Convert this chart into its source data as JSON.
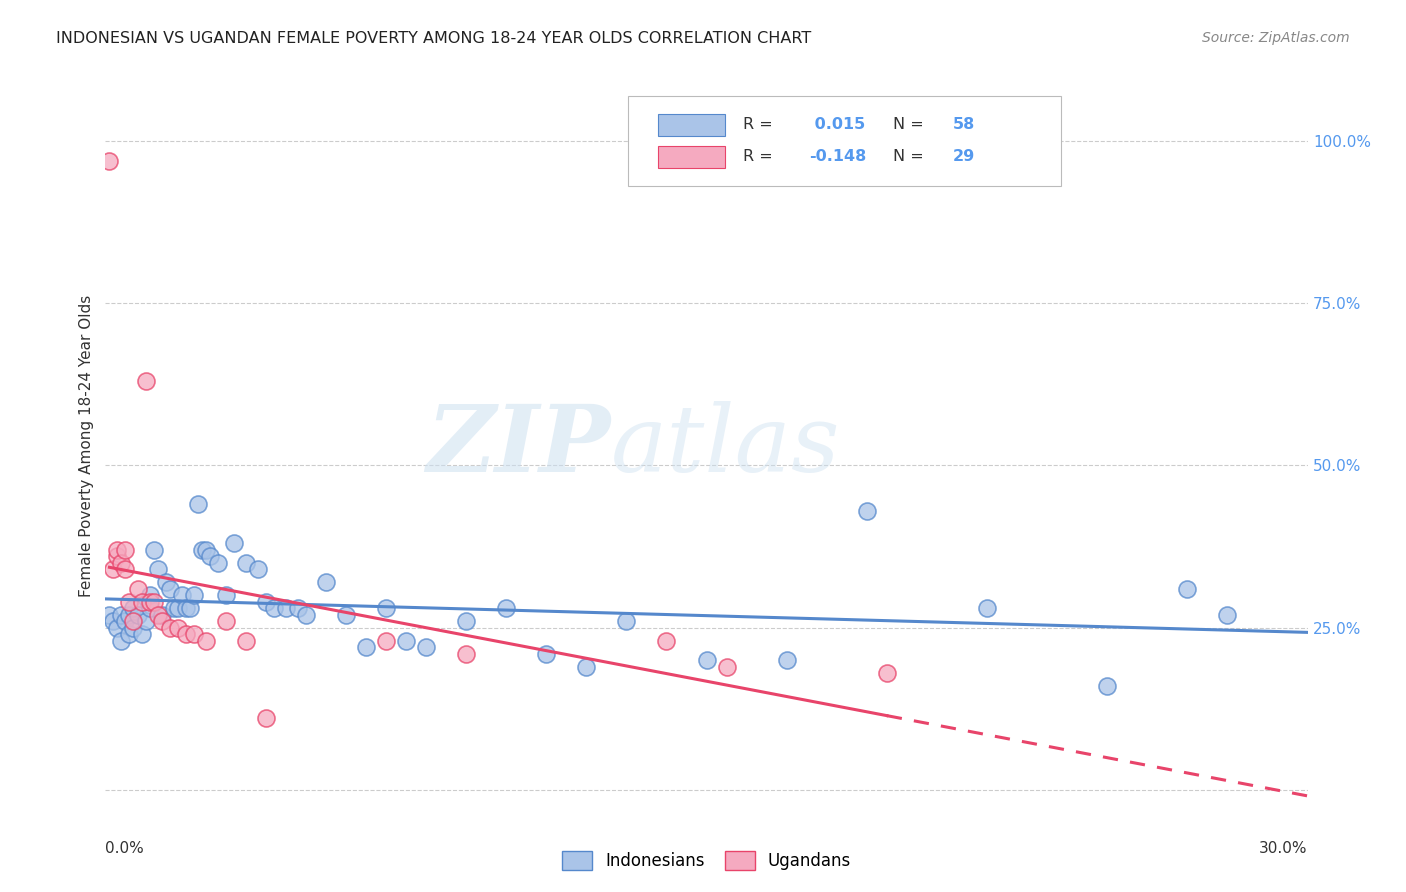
{
  "title": "INDONESIAN VS UGANDAN FEMALE POVERTY AMONG 18-24 YEAR OLDS CORRELATION CHART",
  "source": "Source: ZipAtlas.com",
  "ylabel": "Female Poverty Among 18-24 Year Olds",
  "xlim": [
    0.0,
    0.3
  ],
  "ylim": [
    -0.02,
    1.08
  ],
  "legend_r_blue": " 0.015",
  "legend_n_blue": "58",
  "legend_r_pink": "-0.148",
  "legend_n_pink": "29",
  "blue_color": "#aac4e8",
  "pink_color": "#f5aac0",
  "line_blue": "#5588cc",
  "line_pink": "#e8446a",
  "watermark_zip": "ZIP",
  "watermark_atlas": "atlas",
  "indonesian_x": [
    0.001,
    0.002,
    0.003,
    0.004,
    0.004,
    0.005,
    0.006,
    0.006,
    0.007,
    0.007,
    0.008,
    0.009,
    0.01,
    0.011,
    0.011,
    0.012,
    0.013,
    0.014,
    0.015,
    0.016,
    0.017,
    0.018,
    0.019,
    0.02,
    0.021,
    0.022,
    0.023,
    0.024,
    0.025,
    0.026,
    0.028,
    0.03,
    0.032,
    0.035,
    0.038,
    0.04,
    0.042,
    0.045,
    0.048,
    0.05,
    0.055,
    0.06,
    0.065,
    0.07,
    0.075,
    0.08,
    0.09,
    0.1,
    0.11,
    0.12,
    0.13,
    0.15,
    0.17,
    0.19,
    0.22,
    0.25,
    0.27,
    0.28
  ],
  "indonesian_y": [
    0.27,
    0.26,
    0.25,
    0.27,
    0.23,
    0.26,
    0.27,
    0.24,
    0.28,
    0.25,
    0.27,
    0.24,
    0.26,
    0.28,
    0.3,
    0.37,
    0.34,
    0.27,
    0.32,
    0.31,
    0.28,
    0.28,
    0.3,
    0.28,
    0.28,
    0.3,
    0.44,
    0.37,
    0.37,
    0.36,
    0.35,
    0.3,
    0.38,
    0.35,
    0.34,
    0.29,
    0.28,
    0.28,
    0.28,
    0.27,
    0.32,
    0.27,
    0.22,
    0.28,
    0.23,
    0.22,
    0.26,
    0.28,
    0.21,
    0.19,
    0.26,
    0.2,
    0.2,
    0.43,
    0.28,
    0.16,
    0.31,
    0.27
  ],
  "ugandan_x": [
    0.001,
    0.002,
    0.003,
    0.003,
    0.004,
    0.005,
    0.005,
    0.006,
    0.007,
    0.008,
    0.009,
    0.01,
    0.011,
    0.012,
    0.013,
    0.014,
    0.016,
    0.018,
    0.02,
    0.022,
    0.025,
    0.03,
    0.035,
    0.04,
    0.07,
    0.09,
    0.14,
    0.155,
    0.195
  ],
  "ugandan_y": [
    0.97,
    0.34,
    0.36,
    0.37,
    0.35,
    0.34,
    0.37,
    0.29,
    0.26,
    0.31,
    0.29,
    0.63,
    0.29,
    0.29,
    0.27,
    0.26,
    0.25,
    0.25,
    0.24,
    0.24,
    0.23,
    0.26,
    0.23,
    0.11,
    0.23,
    0.21,
    0.23,
    0.19,
    0.18
  ]
}
